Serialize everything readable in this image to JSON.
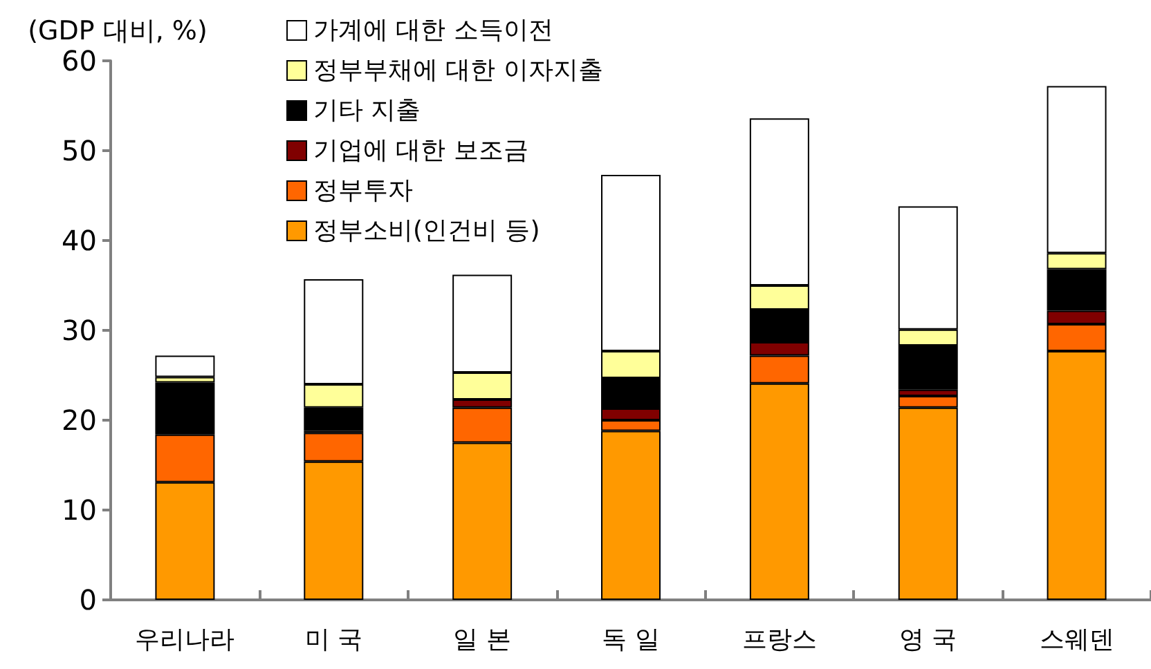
{
  "chart_data": {
    "type": "bar",
    "stacked": true,
    "ylabel": "(GDP 대비, %)",
    "categories": [
      "우리나라",
      "미 국",
      "일 본",
      "독 일",
      "프랑스",
      "영 국",
      "스웨덴"
    ],
    "series": [
      {
        "name": "정부소비(인건비 등)",
        "color": "#ff9900",
        "values": [
          13.1,
          15.4,
          17.5,
          18.8,
          24.1,
          21.4,
          27.7
        ]
      },
      {
        "name": "정부투자",
        "color": "#ff6600",
        "values": [
          5.3,
          3.2,
          3.9,
          1.2,
          3.1,
          1.3,
          3.0
        ]
      },
      {
        "name": "기업에 대한 보조금",
        "color": "#800000",
        "values": [
          0,
          0.2,
          0.9,
          1.3,
          1.5,
          0.7,
          1.5
        ]
      },
      {
        "name": "기타 지출",
        "color": "#000000",
        "values": [
          5.8,
          2.6,
          0,
          3.4,
          3.6,
          4.9,
          4.6
        ]
      },
      {
        "name": "정부부채에 대한 이자지출",
        "color": "#ffff99",
        "values": [
          0.6,
          2.6,
          3.0,
          3.0,
          2.7,
          1.8,
          1.8
        ]
      },
      {
        "name": "가계에 대한 소득이전",
        "color": "#ffffff",
        "values": [
          2.4,
          11.7,
          10.9,
          19.6,
          18.6,
          13.7,
          18.6
        ]
      }
    ],
    "ylim": [
      0,
      60
    ],
    "yticks": [
      0,
      10,
      20,
      30,
      40,
      50,
      60
    ],
    "grid": false,
    "legend": "top left"
  }
}
